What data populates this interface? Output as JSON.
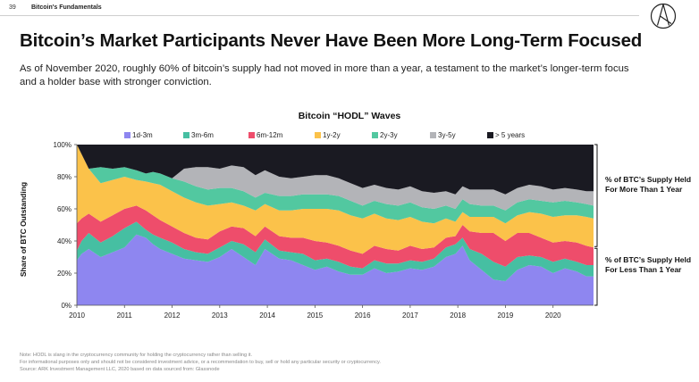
{
  "header": {
    "page_number": "39",
    "section": "Bitcoin's Fundamentals"
  },
  "title": "Bitcoin’s Market Participants Never Have Been More Long-Term Focused",
  "subtitle": "As of November 2020, roughly 60% of bitcoin’s supply had not moved in more than a year, a testament to the market’s longer-term focus and a holder base with stronger conviction.",
  "bracket_labels": {
    "more_than_year": "% of BTC’s Supply Held For More Than 1 Year",
    "less_than_year": "% of BTC’s Supply Held For Less Than 1 Year"
  },
  "notes": [
    "Note: HODL is slang in the cryptocurrency community for holding the cryptocurrency rather than selling it.",
    "For informational purposes only and should not be considered investment advice, or a recommendation to buy, sell or hold any particular security or cryptocurrency.",
    "Source: ARK Investment Management LLC, 2020 based on data sourced from: Glassnode"
  ],
  "chart_data": {
    "type": "area",
    "stacked": true,
    "title": "Bitcoin “HODL” Waves",
    "ylabel": "Share of BTC Outstanding",
    "xlabel": "",
    "ylim": [
      0,
      100
    ],
    "xlim": [
      2010,
      2020.85
    ],
    "x_ticks": [
      "2010",
      "2011",
      "2012",
      "2013",
      "2014",
      "2015",
      "2016",
      "2017",
      "2018",
      "2019",
      "2020"
    ],
    "y_ticks": [
      "0%",
      "20%",
      "40%",
      "60%",
      "80%",
      "100%"
    ],
    "legend_position": "top",
    "x": [
      2010.0,
      2010.1,
      2010.25,
      2010.5,
      2010.75,
      2011.0,
      2011.25,
      2011.45,
      2011.6,
      2011.75,
      2012.0,
      2012.25,
      2012.5,
      2012.75,
      2013.0,
      2013.25,
      2013.5,
      2013.75,
      2013.95,
      2014.25,
      2014.5,
      2014.75,
      2015.0,
      2015.25,
      2015.5,
      2015.75,
      2016.0,
      2016.25,
      2016.5,
      2016.75,
      2017.0,
      2017.25,
      2017.5,
      2017.75,
      2017.95,
      2018.1,
      2018.25,
      2018.5,
      2018.75,
      2019.0,
      2019.25,
      2019.5,
      2019.75,
      2020.0,
      2020.25,
      2020.5,
      2020.7,
      2020.85
    ],
    "series": [
      {
        "name": "1d-3m",
        "color": "#8e86f0",
        "values": [
          28,
          32,
          35,
          30,
          33,
          36,
          44,
          42,
          38,
          35,
          32,
          29,
          28,
          27,
          30,
          35,
          30,
          25,
          35,
          29,
          28,
          25,
          22,
          24,
          21,
          19,
          19,
          23,
          20,
          21,
          23,
          22,
          24,
          30,
          32,
          37,
          28,
          22,
          16,
          15,
          22,
          25,
          24,
          20,
          23,
          21,
          18,
          18
        ]
      },
      {
        "name": "3m-6m",
        "color": "#46bfa2",
        "values": [
          6,
          8,
          10,
          9,
          10,
          12,
          8,
          5,
          6,
          7,
          7,
          6,
          5,
          5,
          6,
          5,
          8,
          8,
          6,
          5,
          5,
          7,
          6,
          5,
          6,
          5,
          4,
          5,
          6,
          5,
          5,
          5,
          5,
          6,
          6,
          5,
          7,
          10,
          11,
          9,
          8,
          6,
          6,
          7,
          6,
          6,
          7,
          7
        ]
      },
      {
        "name": "6m-12m",
        "color": "#ee4d6b",
        "values": [
          17,
          14,
          12,
          13,
          13,
          12,
          10,
          12,
          12,
          11,
          10,
          10,
          9,
          9,
          10,
          9,
          10,
          10,
          8,
          9,
          9,
          10,
          12,
          10,
          10,
          10,
          9,
          9,
          9,
          8,
          9,
          8,
          7,
          6,
          5,
          8,
          11,
          13,
          18,
          16,
          15,
          14,
          12,
          12,
          11,
          12,
          12,
          11
        ]
      },
      {
        "name": "1y-2y",
        "color": "#fbc24a",
        "values": [
          49,
          40,
          28,
          24,
          22,
          20,
          16,
          18,
          20,
          22,
          22,
          22,
          22,
          21,
          17,
          15,
          14,
          16,
          14,
          16,
          17,
          18,
          20,
          21,
          22,
          22,
          22,
          20,
          19,
          19,
          18,
          17,
          15,
          12,
          9,
          8,
          9,
          10,
          10,
          11,
          11,
          13,
          15,
          16,
          16,
          17,
          18,
          18
        ]
      },
      {
        "name": "2y-3y",
        "color": "#52c8a0",
        "values": [
          0,
          0,
          0,
          10,
          7,
          6,
          6,
          5,
          7,
          7,
          8,
          10,
          10,
          10,
          10,
          9,
          9,
          8,
          7,
          9,
          9,
          9,
          9,
          9,
          9,
          9,
          8,
          8,
          9,
          9,
          9,
          9,
          9,
          8,
          8,
          8,
          8,
          7,
          7,
          8,
          8,
          8,
          8,
          9,
          9,
          8,
          8,
          8
        ]
      },
      {
        "name": "3y-5y",
        "color": "#b3b4b8",
        "values": [
          0,
          0,
          0,
          0,
          0,
          0,
          0,
          0,
          0,
          0,
          0,
          8,
          12,
          14,
          12,
          14,
          15,
          14,
          14,
          12,
          11,
          11,
          12,
          12,
          11,
          11,
          11,
          10,
          10,
          10,
          10,
          10,
          10,
          9,
          9,
          8,
          9,
          10,
          10,
          10,
          9,
          9,
          9,
          8,
          8,
          8,
          8,
          9
        ]
      },
      {
        "name": "> 5 years",
        "color": "#1a1a22",
        "values": [
          0,
          6,
          15,
          14,
          15,
          14,
          16,
          18,
          17,
          18,
          21,
          15,
          14,
          14,
          15,
          13,
          14,
          19,
          16,
          20,
          21,
          20,
          19,
          19,
          21,
          24,
          27,
          25,
          27,
          28,
          26,
          29,
          30,
          29,
          31,
          26,
          28,
          28,
          28,
          31,
          27,
          25,
          26,
          28,
          27,
          28,
          29,
          29
        ]
      }
    ]
  }
}
